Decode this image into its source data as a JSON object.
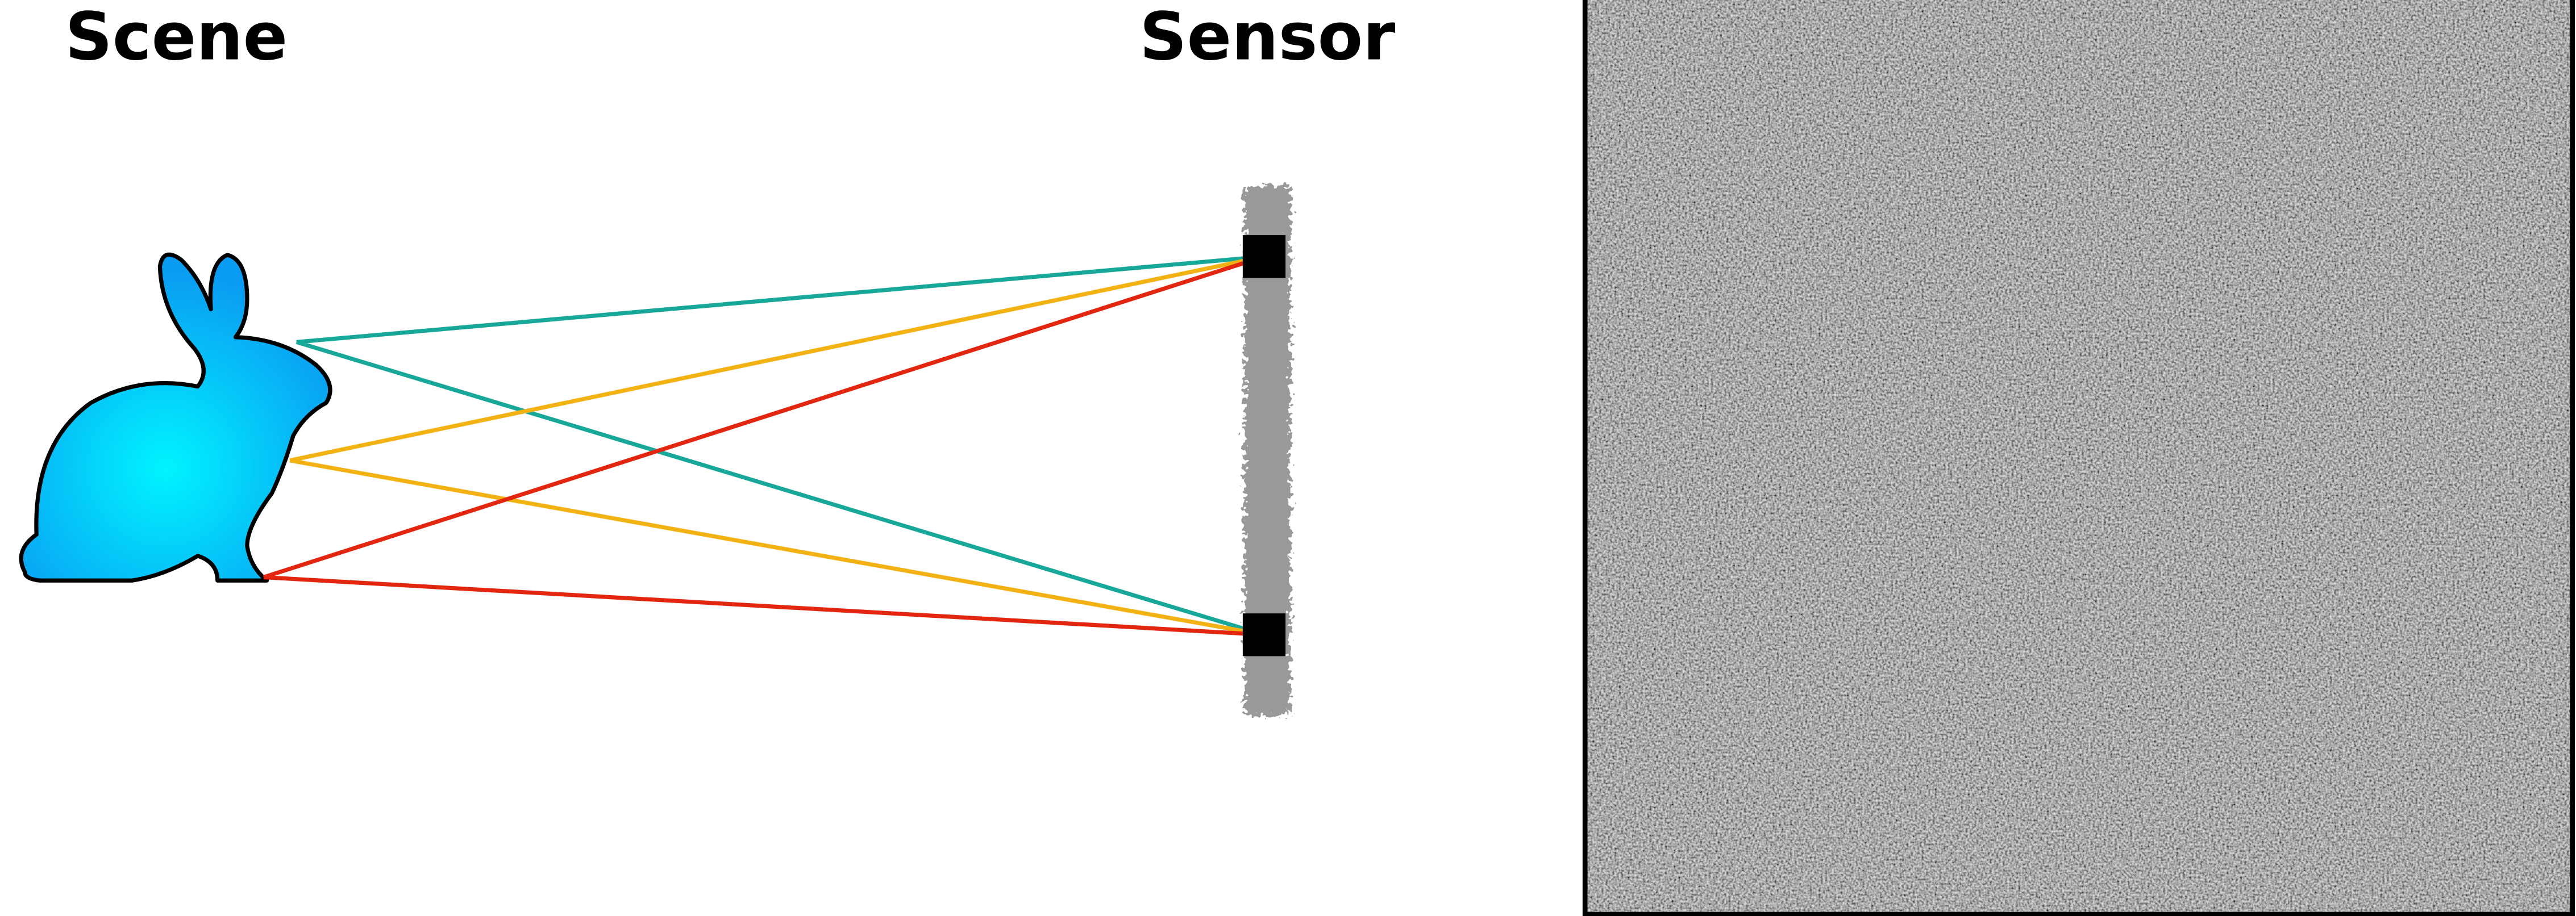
{
  "labels": {
    "scene": "Scene",
    "sensor": "Sensor"
  }
}
